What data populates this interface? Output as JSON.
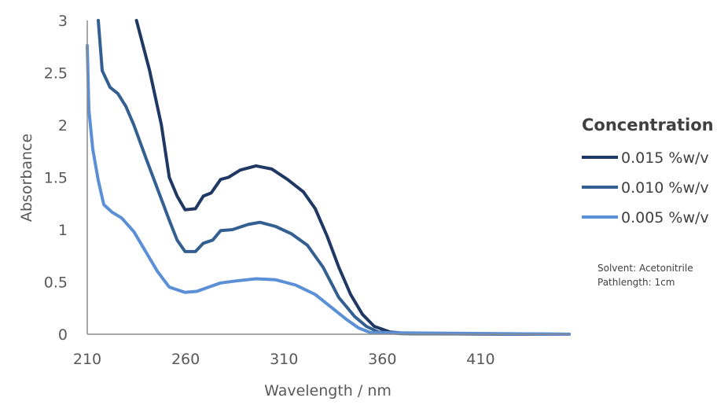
{
  "chart_data": {
    "type": "line",
    "title": "",
    "xlabel": "Wavelength / nm",
    "ylabel": "Absorbance",
    "xlim": [
      210,
      455
    ],
    "ylim": [
      0,
      3
    ],
    "xticks": [
      "210",
      "260",
      "310",
      "360",
      "410"
    ],
    "yticks": [
      "0",
      "0.5",
      "1",
      "1.5",
      "2",
      "2.5",
      "3"
    ],
    "grid": false,
    "legend": {
      "title": "Concentration",
      "placement": "right"
    },
    "annotations": [
      "Solvent: Acetonitrile",
      "Pathlength: 1cm"
    ],
    "series": [
      {
        "name": "0.015 %w/v",
        "color": "#203864",
        "x": [
          235,
          241.7,
          247.7,
          251.7,
          255.7,
          259.7,
          265,
          269,
          273,
          277.8,
          281.8,
          287.8,
          295.8,
          303.8,
          311.8,
          319.9,
          325.9,
          331.9,
          337.9,
          343.9,
          349.9,
          355.9,
          364,
          374,
          455
        ],
        "y": [
          3.0,
          2.52,
          2.0,
          1.5,
          1.32,
          1.19,
          1.2,
          1.32,
          1.35,
          1.48,
          1.5,
          1.57,
          1.61,
          1.58,
          1.48,
          1.36,
          1.2,
          0.94,
          0.64,
          0.38,
          0.19,
          0.075,
          0.02,
          0.005,
          0
        ]
      },
      {
        "name": "0.010 %w/v",
        "color": "#335f91",
        "x": [
          215.6,
          217.6,
          221.6,
          225.6,
          229.6,
          233.7,
          239.7,
          245.7,
          251.7,
          255.7,
          259.7,
          265,
          269,
          273.8,
          277.8,
          283.8,
          291.8,
          297.8,
          305.8,
          313.8,
          321.9,
          329.9,
          337.9,
          345.9,
          351.9,
          358,
          370,
          455
        ],
        "y": [
          3.0,
          2.52,
          2.36,
          2.3,
          2.18,
          2.0,
          1.69,
          1.39,
          1.09,
          0.9,
          0.79,
          0.79,
          0.87,
          0.9,
          0.99,
          1.0,
          1.05,
          1.07,
          1.03,
          0.96,
          0.85,
          0.64,
          0.35,
          0.17,
          0.075,
          0.02,
          0.005,
          0
        ]
      },
      {
        "name": "0.005 %w/v",
        "color": "#5b8fd6",
        "x": [
          210,
          210.8,
          212.8,
          215.6,
          218.4,
          222.4,
          227.6,
          233.7,
          239.7,
          245.7,
          251.7,
          259.7,
          265.7,
          271.7,
          277.8,
          285.8,
          295.8,
          305.8,
          315.9,
          325.9,
          333.9,
          341.9,
          347.9,
          354,
          455
        ],
        "y": [
          2.76,
          2.15,
          1.77,
          1.47,
          1.24,
          1.17,
          1.11,
          0.98,
          0.79,
          0.6,
          0.45,
          0.4,
          0.41,
          0.45,
          0.49,
          0.51,
          0.53,
          0.52,
          0.47,
          0.38,
          0.26,
          0.14,
          0.06,
          0.015,
          0
        ]
      }
    ]
  }
}
